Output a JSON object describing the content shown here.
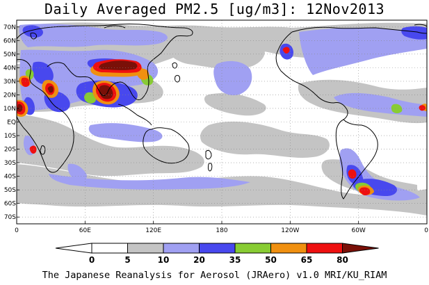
{
  "title": "Daily Averaged PM2.5 [ug/m3]: 12Nov2013",
  "footer": "The Japanese Reanalysis for Aerosol (JRAero) v1.0 MRI/KU_RIAM",
  "map": {
    "projection": "equirectangular",
    "lon_range": [
      0,
      360
    ],
    "lat_range": [
      -75,
      75
    ],
    "lat_ticks": [
      "70N",
      "60N",
      "50N",
      "40N",
      "30N",
      "20N",
      "10N",
      "EQ",
      "10S",
      "20S",
      "30S",
      "40S",
      "50S",
      "60S",
      "70S"
    ],
    "lat_values": [
      70,
      60,
      50,
      40,
      30,
      20,
      10,
      0,
      -10,
      -20,
      -30,
      -40,
      -50,
      -60,
      -70
    ],
    "lon_ticks": [
      "0",
      "60E",
      "120E",
      "180",
      "120W",
      "60W",
      "0"
    ],
    "lon_values": [
      0,
      60,
      120,
      180,
      240,
      300,
      360
    ],
    "gridlines": "dotted"
  },
  "colorbar": {
    "labels": [
      "0",
      "5",
      "10",
      "20",
      "35",
      "50",
      "65",
      "80"
    ],
    "colors": [
      "#ffffff",
      "#c4c4c4",
      "#a0a0f2",
      "#4848ee",
      "#88cc33",
      "#f09010",
      "#ee1010",
      "#7a1008"
    ]
  },
  "palette": {
    "gray": "#c4c4c4",
    "light_blue": "#a0a0f2",
    "blue": "#4848ee",
    "green": "#88cc33",
    "orange": "#f09010",
    "red": "#ee1010",
    "dark_red": "#7a1008"
  }
}
